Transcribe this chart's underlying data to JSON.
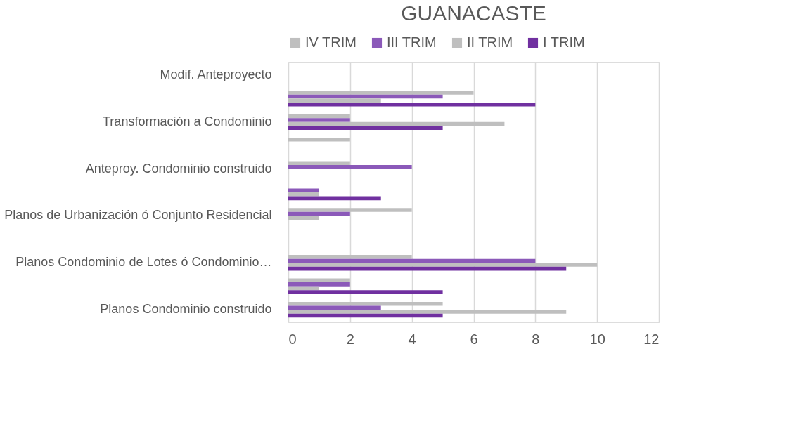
{
  "chart_data": {
    "type": "bar",
    "orientation": "horizontal",
    "title": "GUANACASTE",
    "categories": [
      "Modif. Anteproyecto",
      null,
      "Transformación a Condominio",
      null,
      "Anteproy. Condominio construido",
      null,
      "Planos de Urbanización ó Conjunto Residencial",
      null,
      "Planos Condominio de Lotes ó Condominio…",
      null,
      "Planos Condominio construido"
    ],
    "series": [
      {
        "name": "IV TRIM",
        "color": "#bfbfbf",
        "values": [
          null,
          6,
          2,
          2,
          2,
          null,
          4,
          null,
          4,
          2,
          5
        ]
      },
      {
        "name": "III TRIM",
        "color": "#8b59b9",
        "values": [
          null,
          5,
          2,
          null,
          4,
          1,
          2,
          null,
          8,
          2,
          3
        ]
      },
      {
        "name": "II TRIM",
        "color": "#bfbfbf",
        "values": [
          null,
          3,
          7,
          null,
          null,
          1,
          1,
          null,
          10,
          1,
          9
        ]
      },
      {
        "name": "I TRIM",
        "color": "#7030a0",
        "values": [
          null,
          8,
          5,
          null,
          null,
          3,
          null,
          null,
          9,
          5,
          5
        ]
      }
    ],
    "xlim": [
      0,
      12
    ],
    "xticks": [
      0,
      2,
      4,
      6,
      8,
      10,
      12
    ],
    "grid": "x",
    "legend": "top"
  }
}
